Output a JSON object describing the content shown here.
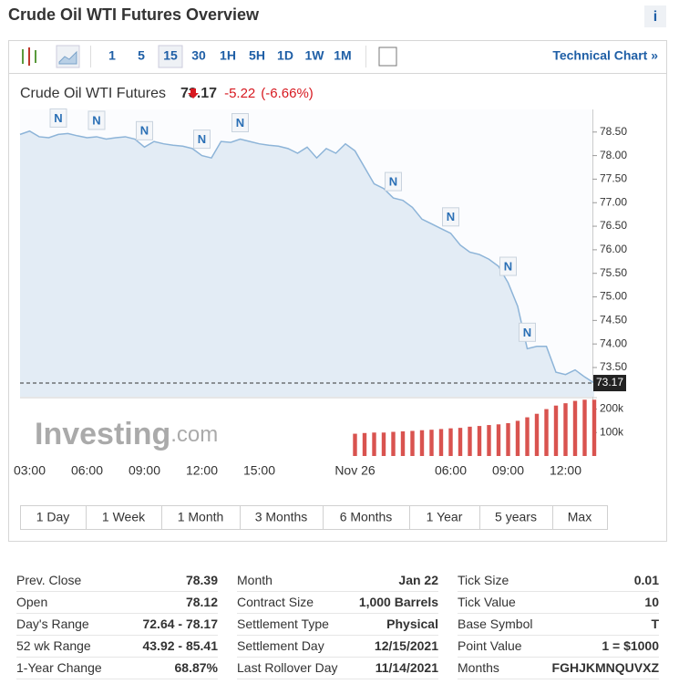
{
  "header": {
    "title": "Crude Oil WTI Futures Overview",
    "info": "i"
  },
  "toolbar": {
    "intervals": [
      "1",
      "5",
      "15",
      "30",
      "1H",
      "5H",
      "1D",
      "1W",
      "1M"
    ],
    "selected": 2,
    "link": "Technical Chart »"
  },
  "chart_data": {
    "type": "area",
    "title": "Crude Oil WTI Futures",
    "price": 73.17,
    "change": -5.22,
    "change_pct": "(-6.66%)",
    "watermark": {
      "brand": "Investing",
      "suffix": ".com"
    },
    "categories": [
      null,
      "03:00",
      null,
      null,
      null,
      null,
      null,
      "06:00",
      null,
      null,
      null,
      null,
      null,
      "09:00",
      null,
      null,
      null,
      null,
      null,
      "12:00",
      null,
      null,
      null,
      null,
      null,
      "15:00",
      null,
      null,
      null,
      null,
      null,
      null,
      null,
      null,
      null,
      "Nov 26",
      null,
      null,
      null,
      null,
      null,
      null,
      null,
      null,
      null,
      "06:00",
      null,
      null,
      null,
      null,
      null,
      "09:00",
      null,
      null,
      null,
      null,
      null,
      "12:00",
      null,
      null,
      null
    ],
    "series": [
      {
        "color": "#8db4d8",
        "values": [
          78.45,
          78.52,
          78.4,
          78.38,
          78.45,
          78.47,
          78.42,
          78.38,
          78.4,
          78.35,
          78.38,
          78.4,
          78.35,
          78.18,
          78.3,
          78.25,
          78.22,
          78.2,
          78.15,
          78.0,
          77.95,
          78.3,
          78.28,
          78.35,
          78.3,
          78.25,
          78.22,
          78.2,
          78.15,
          78.05,
          78.18,
          77.95,
          78.15,
          78.05,
          78.25,
          78.1,
          77.75,
          77.4,
          77.3,
          77.1,
          77.05,
          76.9,
          76.65,
          76.55,
          76.45,
          76.35,
          76.1,
          75.95,
          75.9,
          75.8,
          75.65,
          75.3,
          74.8,
          73.9,
          73.95,
          73.95,
          73.4,
          73.35,
          73.45,
          73.3,
          73.17
        ]
      },
      {
        "type": "bar",
        "axis": "y2",
        "color": "#d9534f",
        "values": [
          null,
          null,
          null,
          null,
          null,
          null,
          null,
          null,
          null,
          null,
          null,
          null,
          null,
          null,
          null,
          null,
          null,
          null,
          null,
          null,
          null,
          null,
          null,
          null,
          null,
          null,
          null,
          null,
          null,
          null,
          null,
          null,
          null,
          null,
          null,
          95000,
          98000,
          100000,
          100000,
          103000,
          105000,
          107000,
          110000,
          112000,
          115000,
          118000,
          120000,
          125000,
          128000,
          132000,
          135000,
          140000,
          150000,
          165000,
          180000,
          200000,
          215000,
          225000,
          235000,
          240000,
          240000
        ]
      }
    ],
    "ylim": [
      72.88,
      78.98
    ],
    "yticks": [
      {
        "value": 73.5,
        "label": "73.50"
      },
      {
        "value": 74,
        "label": "74.00"
      },
      {
        "value": 74.5,
        "label": "74.50"
      },
      {
        "value": 75,
        "label": "75.00"
      },
      {
        "value": 75.5,
        "label": "75.50"
      },
      {
        "value": 76,
        "label": "76.00"
      },
      {
        "value": 76.5,
        "label": "76.50"
      },
      {
        "value": 77,
        "label": "77.00"
      },
      {
        "value": 77.5,
        "label": "77.50"
      },
      {
        "value": 78,
        "label": "78.00"
      },
      {
        "value": 78.5,
        "label": "78.50"
      }
    ],
    "y2lim": [
      0,
      245000
    ],
    "y2ticks": [
      {
        "value": 100000,
        "label": "100k"
      },
      {
        "value": 200000,
        "label": "200k"
      }
    ],
    "news_markers": [
      {
        "text": "N",
        "at": 4
      },
      {
        "text": "N",
        "at": 8
      },
      {
        "text": "N",
        "at": 13
      },
      {
        "text": "N",
        "at": 19
      },
      {
        "text": "N",
        "at": 23
      },
      {
        "text": "N",
        "at": 39
      },
      {
        "text": "N",
        "at": 45
      },
      {
        "text": "N",
        "at": 51
      },
      {
        "text": "N",
        "at": 53
      }
    ]
  },
  "ranges": [
    "1 Day",
    "1 Week",
    "1 Month",
    "3 Months",
    "6 Months",
    "1 Year",
    "5 years",
    "Max"
  ],
  "stats": [
    [
      [
        "Prev. Close",
        "78.39"
      ],
      [
        "Open",
        "78.12"
      ],
      [
        "Day's Range",
        "72.64 - 78.17"
      ],
      [
        "52 wk Range",
        "43.92 - 85.41"
      ],
      [
        "1-Year Change",
        "68.87%"
      ]
    ],
    [
      [
        "Month",
        "Jan 22"
      ],
      [
        "Contract Size",
        "1,000 Barrels"
      ],
      [
        "Settlement Type",
        "Physical"
      ],
      [
        "Settlement Day",
        "12/15/2021"
      ],
      [
        "Last Rollover Day",
        "11/14/2021"
      ]
    ],
    [
      [
        "Tick Size",
        "0.01"
      ],
      [
        "Tick Value",
        "10"
      ],
      [
        "Base Symbol",
        "T"
      ],
      [
        "Point Value",
        "1 = $1000"
      ],
      [
        "Months",
        "FGHJKMNQUVXZ"
      ]
    ]
  ]
}
